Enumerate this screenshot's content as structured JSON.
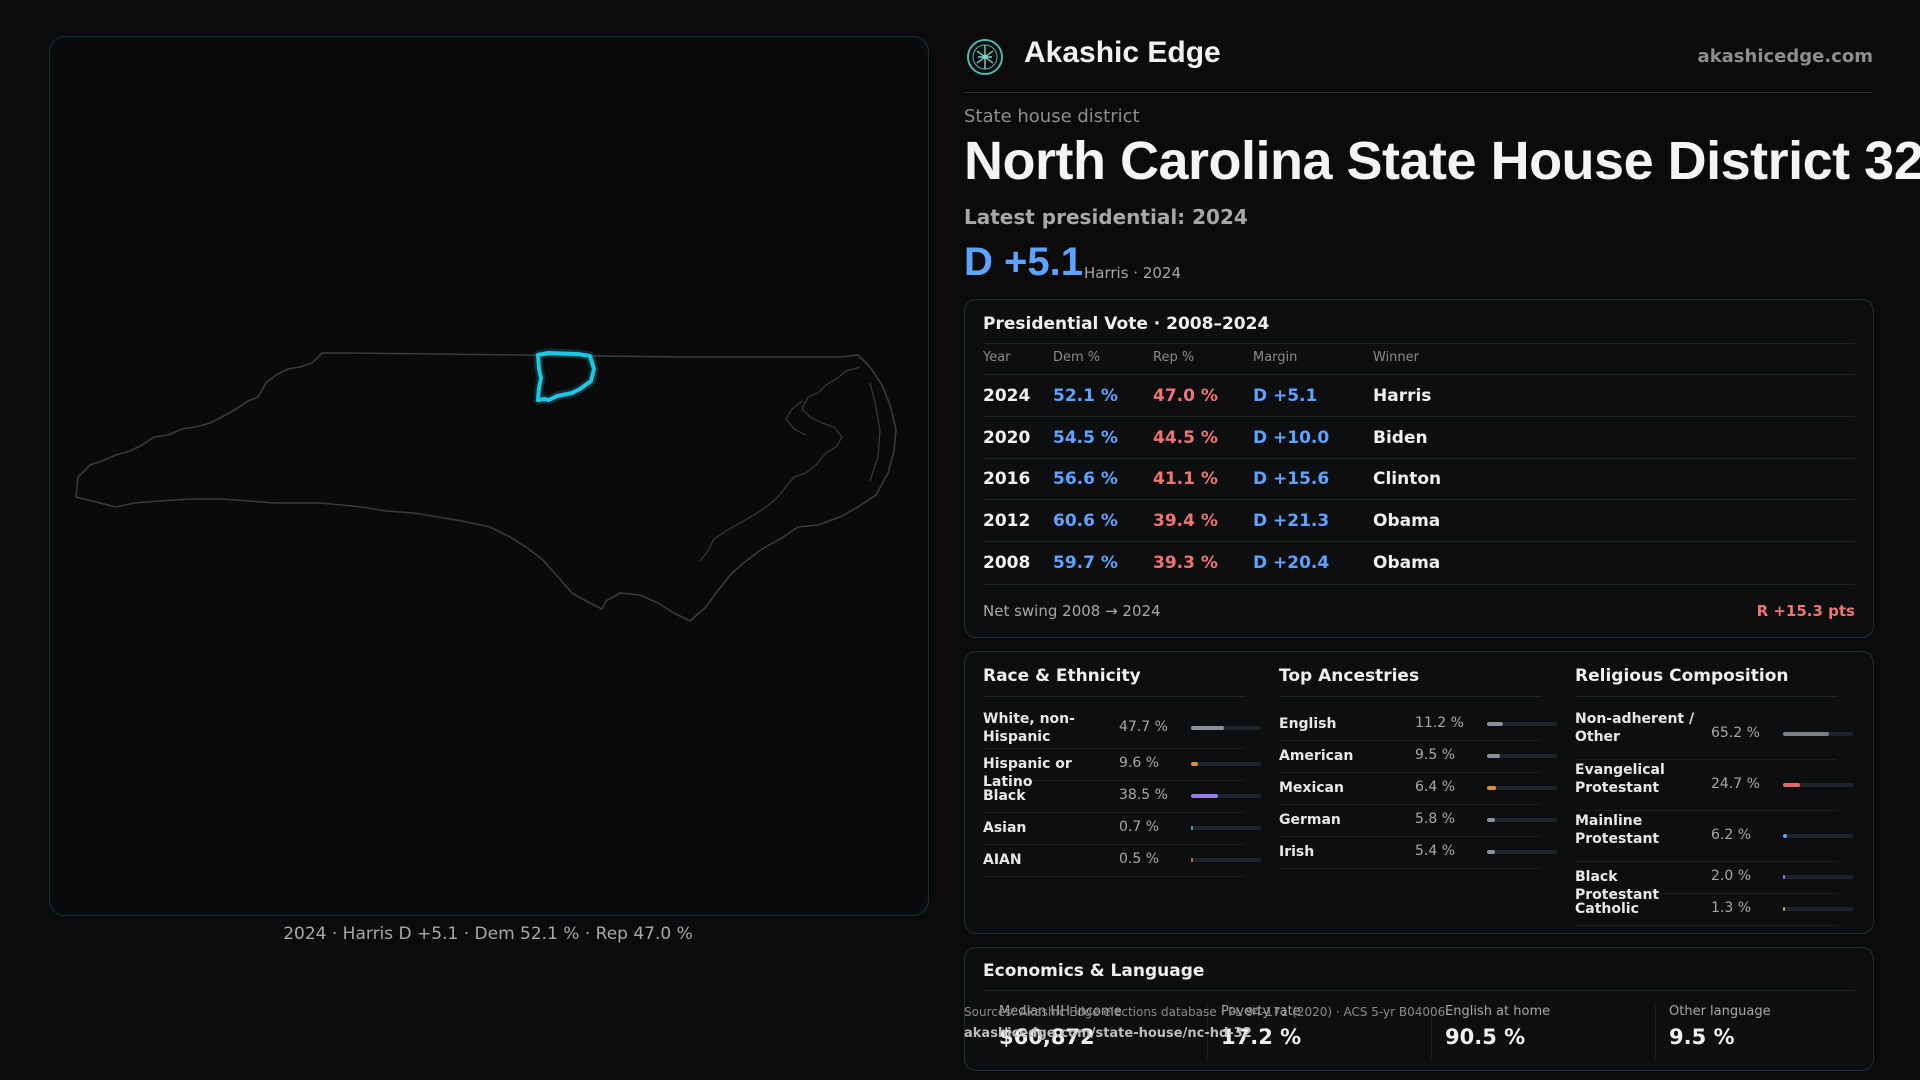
{
  "map": {
    "caption": "2024 · Harris D +5.1 · Dem 52.1 % · Rep 47.0 %",
    "highlight_color": "#1ec8e6",
    "outline_color": "#3a3a3a"
  },
  "header": {
    "brand": "Akashic Edge",
    "site": "akashicedge.com",
    "logo_icon": "tree-of-life-logo"
  },
  "district": {
    "type_label": "State house district",
    "title": "North Carolina State House District 32",
    "latest_label": "Latest presidential: 2024",
    "margin": "D +5.1",
    "margin_sub": "Harris · 2024"
  },
  "presidential": {
    "title": "Presidential Vote · 2008–2024",
    "headers": [
      "Year",
      "Dem %",
      "Rep %",
      "Margin",
      "Winner"
    ],
    "rows": [
      {
        "year": "2024",
        "dem": "52.1 %",
        "rep": "47.0 %",
        "margin": "D +5.1",
        "winner": "Harris"
      },
      {
        "year": "2020",
        "dem": "54.5 %",
        "rep": "44.5 %",
        "margin": "D +10.0",
        "winner": "Biden"
      },
      {
        "year": "2016",
        "dem": "56.6 %",
        "rep": "41.1 %",
        "margin": "D +15.6",
        "winner": "Clinton"
      },
      {
        "year": "2012",
        "dem": "60.6 %",
        "rep": "39.4 %",
        "margin": "D +21.3",
        "winner": "Obama"
      },
      {
        "year": "2008",
        "dem": "59.7 %",
        "rep": "39.3 %",
        "margin": "D +20.4",
        "winner": "Obama"
      }
    ],
    "swing_label": "Net swing 2008 → 2024",
    "swing_value": "R +15.3 pts"
  },
  "race": {
    "title": "Race & Ethnicity",
    "rows": [
      {
        "label": "White, non-Hispanic",
        "value": "47.7 %",
        "pct": 47.7,
        "color": "#8a9099"
      },
      {
        "label": "Hispanic or Latino",
        "value": "9.6 %",
        "pct": 9.6,
        "color": "#e0903a"
      },
      {
        "label": "Black",
        "value": "38.5 %",
        "pct": 38.5,
        "color": "#9b7be6"
      },
      {
        "label": "Asian",
        "value": "0.7 %",
        "pct": 0.7,
        "color": "#3ab8a0"
      },
      {
        "label": "AIAN",
        "value": "0.5 %",
        "pct": 0.5,
        "color": "#c0704a"
      }
    ]
  },
  "ancestry": {
    "title": "Top Ancestries",
    "rows": [
      {
        "label": "English",
        "value": "11.2 %",
        "pct": 11.2,
        "color": "#8a9099"
      },
      {
        "label": "American",
        "value": "9.5 %",
        "pct": 9.5,
        "color": "#8a9099"
      },
      {
        "label": "Mexican",
        "value": "6.4 %",
        "pct": 6.4,
        "color": "#e0903a"
      },
      {
        "label": "German",
        "value": "5.8 %",
        "pct": 5.8,
        "color": "#8a9099"
      },
      {
        "label": "Irish",
        "value": "5.4 %",
        "pct": 5.4,
        "color": "#8a9099"
      }
    ]
  },
  "religion": {
    "title": "Religious Composition",
    "rows": [
      {
        "label": "Non-adherent / Other",
        "value": "65.2 %",
        "pct": 65.2,
        "color": "#7a7f88"
      },
      {
        "label": "Evangelical Protestant",
        "value": "24.7 %",
        "pct": 24.7,
        "color": "#e06a6a"
      },
      {
        "label": "Mainline Protestant",
        "value": "6.2 %",
        "pct": 6.2,
        "color": "#5ea3ff"
      },
      {
        "label": "Black Protestant",
        "value": "2.0 %",
        "pct": 2.0,
        "color": "#9b7be6"
      },
      {
        "label": "Catholic",
        "value": "1.3 %",
        "pct": 1.3,
        "color": "#c8b040"
      }
    ]
  },
  "economics": {
    "title": "Economics & Language",
    "stats": [
      {
        "label": "Median HH income",
        "value": "$60,872"
      },
      {
        "label": "Poverty rate",
        "value": "17.2 %"
      },
      {
        "label": "English at home",
        "value": "90.5 %"
      },
      {
        "label": "Other language",
        "value": "9.5 %"
      }
    ]
  },
  "footer": {
    "source": "Sources: Akashic Edge elections database · PL 94-171 (2020) · ACS 5-yr B04006",
    "url": "akashicedge.com/state-house/nc-hd-32"
  }
}
